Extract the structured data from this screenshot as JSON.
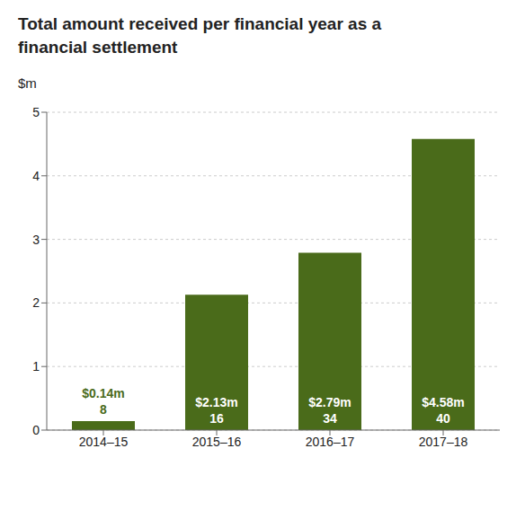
{
  "chart_data": {
    "type": "bar",
    "title": "Total amount received per financial year as a financial settlement",
    "y_label": "$m",
    "categories": [
      "2014–15",
      "2015–16",
      "2016–17",
      "2017–18"
    ],
    "values": [
      0.14,
      2.13,
      2.79,
      4.58
    ],
    "value_labels": [
      "$0.14m",
      "$2.13m",
      "$2.79m",
      "$4.58m"
    ],
    "counts": [
      8,
      16,
      34,
      40
    ],
    "data_labels": true,
    "color": "#4a6b1a",
    "ylim": [
      0,
      5
    ],
    "yticks": [
      0,
      1,
      2,
      3,
      4,
      5
    ],
    "grid": true
  }
}
